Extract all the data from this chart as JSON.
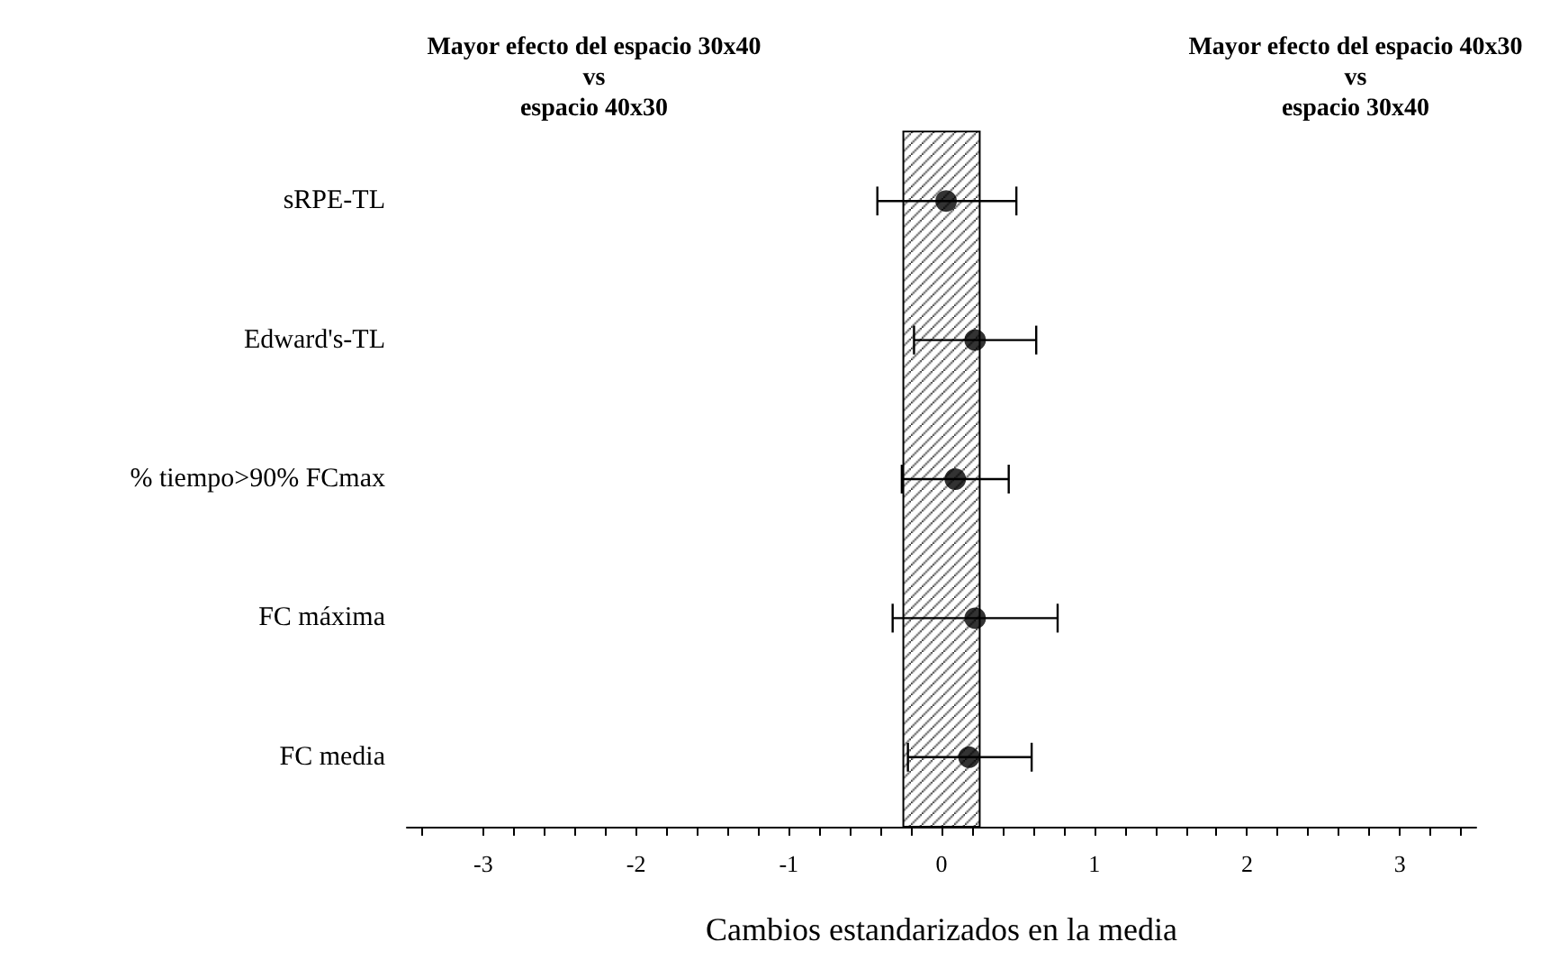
{
  "chart_data": {
    "type": "scatter",
    "xlabel": "Cambios estandarizados en la media",
    "annotations": [
      "Mayor efecto del espacio 30x40\nvs\nespacio 40x30",
      "Mayor efecto del espacio 40x30\nvs\nespacio 30x40"
    ],
    "orientation": "horizontal",
    "categories": [
      "sRPE-TL",
      "Edward's-TL",
      "% tiempo>90% FCmax",
      "FC máxima",
      "FC media"
    ],
    "series": [
      {
        "color": "#000000",
        "values": [
          0.03,
          0.22,
          0.09,
          0.22,
          0.18
        ],
        "errors": [
          [
            -0.42,
            0.49
          ],
          [
            -0.18,
            0.62
          ],
          [
            -0.26,
            0.44
          ],
          [
            -0.32,
            0.76
          ],
          [
            -0.22,
            0.59
          ]
        ]
      }
    ],
    "xlim": [
      -3.5,
      3.5
    ],
    "xticks": [
      {
        "value": -3.4,
        "label": null
      },
      -3,
      {
        "value": -2.8,
        "label": null
      },
      {
        "value": -2.6,
        "label": null
      },
      {
        "value": -2.4,
        "label": null
      },
      {
        "value": -2.2,
        "label": null
      },
      -2,
      {
        "value": -1.8,
        "label": null
      },
      {
        "value": -1.6,
        "label": null
      },
      {
        "value": -1.4,
        "label": null
      },
      {
        "value": -1.2,
        "label": null
      },
      -1,
      {
        "value": -0.8,
        "label": null
      },
      {
        "value": -0.6,
        "label": null
      },
      {
        "value": -0.4,
        "label": null
      },
      {
        "value": -0.2,
        "label": null
      },
      0,
      {
        "value": 0.2,
        "label": null
      },
      {
        "value": 0.4,
        "label": null
      },
      {
        "value": 0.6,
        "label": null
      },
      {
        "value": 0.8,
        "label": null
      },
      1,
      {
        "value": 1.2,
        "label": null
      },
      {
        "value": 1.4,
        "label": null
      },
      {
        "value": 1.6,
        "label": null
      },
      {
        "value": 1.8,
        "label": null
      },
      2,
      {
        "value": 2.2,
        "label": null
      },
      {
        "value": 2.4,
        "label": null
      },
      {
        "value": 2.6,
        "label": null
      },
      {
        "value": 2.8,
        "label": null
      },
      3,
      {
        "value": 3.2,
        "label": null
      },
      {
        "value": 3.4,
        "label": null
      }
    ],
    "bands": [
      {
        "axis": "x",
        "from": -0.25,
        "to": 0.25,
        "color": "#000000"
      }
    ],
    "marker": "circle",
    "grid": false
  }
}
